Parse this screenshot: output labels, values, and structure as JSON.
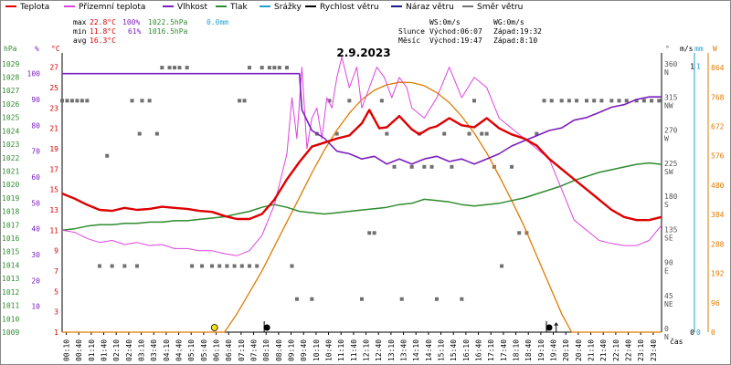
{
  "chart_data": {
    "type": "line",
    "title": "2.9.2023",
    "legend": [
      {
        "label": "Teplota",
        "color": "#dd0000"
      },
      {
        "label": "Přízemní teplota",
        "color": "#dd44dd"
      },
      {
        "label": "Vlhkost",
        "color": "#7a1fbf"
      },
      {
        "label": "Tlak",
        "color": "#2e8b2e"
      },
      {
        "label": "Srážky",
        "color": "#1fa0d0"
      },
      {
        "label": "Rychlost větru",
        "color": "#000000"
      },
      {
        "label": "Náraz větru",
        "color": "#1a1a8c"
      },
      {
        "label": "Směr větru",
        "color": "#707070"
      }
    ],
    "stats": {
      "max": {
        "label": "max",
        "temp": "22.8°C",
        "hum": "100%",
        "pres": "1022.5hPa",
        "rain": "0.0mm"
      },
      "min": {
        "label": "min",
        "temp": "11.8°C",
        "hum": "61%",
        "pres": "1016.5hPa"
      },
      "avg": {
        "label": "avg",
        "temp": "16.3°C"
      }
    },
    "info": {
      "ws": "WS:0m/s",
      "wg": "WG:0m/s",
      "sun_label": "Slunce",
      "sunrise": "Východ:06:07",
      "sunset": "Západ:19:32",
      "moon_label": "Měsíc",
      "moonrise": "Východ:19:47",
      "moonset": "Západ:8:10"
    },
    "axis_units": {
      "pressure": "hPa",
      "humidity": "%",
      "temperature": "°C",
      "direction": "°",
      "wind": "m/s",
      "rain": "mm",
      "solar": "W",
      "time": "čas"
    },
    "pressure_ticks": [
      1009,
      1010,
      1011,
      1012,
      1013,
      1014,
      1015,
      1016,
      1017,
      1018,
      1019,
      1020,
      1021,
      1022,
      1023,
      1024,
      1025,
      1026,
      1027,
      1028,
      1029
    ],
    "humidity_ticks": [
      10,
      20,
      30,
      40,
      50,
      60,
      70,
      80,
      90,
      100
    ],
    "temperature_ticks": [
      1,
      3,
      5,
      7,
      9,
      11,
      13,
      15,
      17,
      19,
      21,
      23,
      25,
      27
    ],
    "direction_ticks": [
      {
        "v": 0,
        "l": "0 N"
      },
      {
        "v": 45,
        "l": "45 NE"
      },
      {
        "v": 90,
        "l": "90 E"
      },
      {
        "v": 135,
        "l": "135 SE"
      },
      {
        "v": 180,
        "l": "180 S"
      },
      {
        "v": 225,
        "l": "225 SW"
      },
      {
        "v": 270,
        "l": "270 W"
      },
      {
        "v": 315,
        "l": "315 NW"
      },
      {
        "v": 360,
        "l": "360 N"
      }
    ],
    "wind_ticks": [
      {
        "v": 0,
        "l": "0"
      },
      {
        "v": 1,
        "l": "1"
      }
    ],
    "rain_ticks": [
      {
        "v": 0,
        "l": "0"
      },
      {
        "v": 1,
        "l": "1"
      }
    ],
    "solar_ticks": [
      0,
      96,
      192,
      288,
      384,
      480,
      576,
      672,
      768,
      864
    ],
    "x_ticks": [
      "00:10",
      "00:40",
      "01:10",
      "01:40",
      "02:10",
      "02:40",
      "03:10",
      "03:40",
      "04:10",
      "04:40",
      "05:10",
      "05:40",
      "06:10",
      "06:40",
      "07:10",
      "07:40",
      "08:10",
      "08:40",
      "09:10",
      "09:40",
      "10:10",
      "10:40",
      "11:10",
      "11:40",
      "12:10",
      "12:40",
      "13:10",
      "13:40",
      "14:10",
      "14:40",
      "15:10",
      "15:40",
      "16:10",
      "16:40",
      "17:10",
      "17:40",
      "18:10",
      "18:40",
      "19:10",
      "19:40",
      "20:10",
      "20:40",
      "21:10",
      "21:40",
      "22:10",
      "22:40",
      "23:10",
      "23:40"
    ],
    "xlim": [
      0,
      24
    ],
    "series": {
      "temperature": [
        [
          0,
          14.6
        ],
        [
          0.5,
          14.1
        ],
        [
          1,
          13.5
        ],
        [
          1.5,
          13.0
        ],
        [
          2,
          12.9
        ],
        [
          2.5,
          13.2
        ],
        [
          3,
          13.0
        ],
        [
          3.5,
          13.1
        ],
        [
          4,
          13.3
        ],
        [
          4.5,
          13.2
        ],
        [
          5,
          13.1
        ],
        [
          5.5,
          12.9
        ],
        [
          6,
          12.8
        ],
        [
          6.5,
          12.4
        ],
        [
          7,
          12.1
        ],
        [
          7.5,
          12.1
        ],
        [
          8,
          12.6
        ],
        [
          8.5,
          14.0
        ],
        [
          9,
          16.0
        ],
        [
          9.5,
          17.7
        ],
        [
          10,
          19.2
        ],
        [
          10.5,
          19.6
        ],
        [
          11,
          20.0
        ],
        [
          11.5,
          20.3
        ],
        [
          12,
          21.5
        ],
        [
          12.3,
          22.8
        ],
        [
          12.7,
          21.0
        ],
        [
          13,
          21.1
        ],
        [
          13.5,
          22.2
        ],
        [
          14,
          20.9
        ],
        [
          14.3,
          20.4
        ],
        [
          14.7,
          21.0
        ],
        [
          15,
          21.2
        ],
        [
          15.5,
          22.0
        ],
        [
          16,
          21.3
        ],
        [
          16.5,
          21.1
        ],
        [
          17,
          22.0
        ],
        [
          17.5,
          21.0
        ],
        [
          18,
          20.4
        ],
        [
          18.5,
          20.0
        ],
        [
          19,
          19.3
        ],
        [
          19.5,
          18.0
        ],
        [
          20,
          17.0
        ],
        [
          20.5,
          16.0
        ],
        [
          21,
          15.0
        ],
        [
          21.5,
          14.0
        ],
        [
          22,
          13.0
        ],
        [
          22.5,
          12.3
        ],
        [
          23,
          12.0
        ],
        [
          23.5,
          12.0
        ],
        [
          24,
          12.3
        ]
      ],
      "ground_temp": [
        [
          0,
          11.0
        ],
        [
          0.5,
          10.8
        ],
        [
          1,
          10.2
        ],
        [
          1.5,
          9.8
        ],
        [
          2,
          10.0
        ],
        [
          2.5,
          9.6
        ],
        [
          3,
          9.8
        ],
        [
          3.5,
          9.5
        ],
        [
          4,
          9.6
        ],
        [
          4.5,
          9.2
        ],
        [
          5,
          9.2
        ],
        [
          5.5,
          9.0
        ],
        [
          6,
          9.0
        ],
        [
          6.5,
          8.7
        ],
        [
          7,
          8.5
        ],
        [
          7.5,
          9.0
        ],
        [
          8,
          10.5
        ],
        [
          8.5,
          13.5
        ],
        [
          9,
          18.5
        ],
        [
          9.2,
          24
        ],
        [
          9.4,
          20
        ],
        [
          9.6,
          27
        ],
        [
          9.8,
          19
        ],
        [
          10,
          22
        ],
        [
          10.2,
          23
        ],
        [
          10.4,
          20
        ],
        [
          10.6,
          24
        ],
        [
          10.8,
          23
        ],
        [
          11,
          26
        ],
        [
          11.2,
          28
        ],
        [
          11.5,
          25
        ],
        [
          11.8,
          27
        ],
        [
          12,
          23
        ],
        [
          12.3,
          25
        ],
        [
          12.6,
          27
        ],
        [
          12.9,
          26
        ],
        [
          13.2,
          24
        ],
        [
          13.5,
          26
        ],
        [
          13.8,
          25
        ],
        [
          14,
          23
        ],
        [
          14.5,
          22
        ],
        [
          15,
          24
        ],
        [
          15.5,
          27
        ],
        [
          16,
          24
        ],
        [
          16.5,
          26
        ],
        [
          17,
          25
        ],
        [
          17.5,
          22
        ],
        [
          18,
          21
        ],
        [
          18.5,
          20
        ],
        [
          19,
          19
        ],
        [
          19.5,
          18
        ],
        [
          20,
          15
        ],
        [
          20.5,
          12
        ],
        [
          21,
          11
        ],
        [
          21.5,
          10
        ],
        [
          22,
          9.7
        ],
        [
          22.5,
          9.5
        ],
        [
          23,
          9.5
        ],
        [
          23.5,
          10.0
        ],
        [
          24,
          11.5
        ]
      ],
      "humidity": [
        [
          0,
          100
        ],
        [
          9.5,
          100
        ],
        [
          9.6,
          86
        ],
        [
          10,
          78
        ],
        [
          10.5,
          75
        ],
        [
          11,
          70
        ],
        [
          11.5,
          69
        ],
        [
          12,
          67
        ],
        [
          12.5,
          68
        ],
        [
          13,
          65
        ],
        [
          13.5,
          67
        ],
        [
          14,
          65
        ],
        [
          14.5,
          67
        ],
        [
          15,
          68
        ],
        [
          15.5,
          66
        ],
        [
          16,
          67
        ],
        [
          16.5,
          65
        ],
        [
          17,
          67
        ],
        [
          17.5,
          69
        ],
        [
          18,
          72
        ],
        [
          18.5,
          74
        ],
        [
          19,
          76
        ],
        [
          19.5,
          78
        ],
        [
          20,
          79
        ],
        [
          20.5,
          82
        ],
        [
          21,
          83
        ],
        [
          21.5,
          85
        ],
        [
          22,
          87
        ],
        [
          22.5,
          88
        ],
        [
          23,
          90
        ],
        [
          23.5,
          91
        ],
        [
          24,
          91
        ]
      ],
      "pressure": [
        [
          0,
          1016.6
        ],
        [
          0.5,
          1016.7
        ],
        [
          1,
          1016.9
        ],
        [
          1.5,
          1017.0
        ],
        [
          2,
          1017.0
        ],
        [
          2.5,
          1017.1
        ],
        [
          3,
          1017.1
        ],
        [
          3.5,
          1017.2
        ],
        [
          4,
          1017.2
        ],
        [
          4.5,
          1017.3
        ],
        [
          5,
          1017.3
        ],
        [
          5.5,
          1017.4
        ],
        [
          6,
          1017.5
        ],
        [
          6.5,
          1017.6
        ],
        [
          7,
          1017.8
        ],
        [
          7.5,
          1018.0
        ],
        [
          8,
          1018.3
        ],
        [
          8.5,
          1018.5
        ],
        [
          9,
          1018.3
        ],
        [
          9.5,
          1018.0
        ],
        [
          10,
          1017.9
        ],
        [
          10.5,
          1017.8
        ],
        [
          11,
          1017.9
        ],
        [
          11.5,
          1018.0
        ],
        [
          12,
          1018.1
        ],
        [
          12.5,
          1018.2
        ],
        [
          13,
          1018.3
        ],
        [
          13.5,
          1018.5
        ],
        [
          14,
          1018.6
        ],
        [
          14.5,
          1018.9
        ],
        [
          15,
          1018.8
        ],
        [
          15.5,
          1018.7
        ],
        [
          16,
          1018.5
        ],
        [
          16.5,
          1018.4
        ],
        [
          17,
          1018.5
        ],
        [
          17.5,
          1018.6
        ],
        [
          18,
          1018.8
        ],
        [
          18.5,
          1019.0
        ],
        [
          19,
          1019.3
        ],
        [
          19.5,
          1019.6
        ],
        [
          20,
          1019.9
        ],
        [
          20.5,
          1020.3
        ],
        [
          21,
          1020.6
        ],
        [
          21.5,
          1020.9
        ],
        [
          22,
          1021.1
        ],
        [
          22.5,
          1021.3
        ],
        [
          23,
          1021.5
        ],
        [
          23.5,
          1021.6
        ],
        [
          24,
          1021.5
        ]
      ],
      "wind_direction": [
        [
          0,
          315
        ],
        [
          0.2,
          315
        ],
        [
          0.4,
          315
        ],
        [
          0.6,
          315
        ],
        [
          0.8,
          315
        ],
        [
          1,
          315
        ],
        [
          1.5,
          90
        ],
        [
          2,
          90
        ],
        [
          2.5,
          90
        ],
        [
          3,
          90
        ],
        [
          1.8,
          240
        ],
        [
          2.8,
          315
        ],
        [
          3.2,
          315
        ],
        [
          3.5,
          315
        ],
        [
          3.8,
          270
        ],
        [
          3.1,
          270
        ],
        [
          4,
          360
        ],
        [
          4.3,
          360
        ],
        [
          4.5,
          360
        ],
        [
          4.7,
          360
        ],
        [
          5,
          360
        ],
        [
          5.2,
          90
        ],
        [
          5.6,
          90
        ],
        [
          6,
          90
        ],
        [
          6.3,
          90
        ],
        [
          6.6,
          90
        ],
        [
          6.9,
          90
        ],
        [
          7.2,
          90
        ],
        [
          7.5,
          90
        ],
        [
          7.8,
          90
        ],
        [
          7.1,
          315
        ],
        [
          7.3,
          315
        ],
        [
          7.5,
          360
        ],
        [
          8,
          360
        ],
        [
          8.3,
          360
        ],
        [
          8.5,
          360
        ],
        [
          8.7,
          360
        ],
        [
          9,
          360
        ],
        [
          9.2,
          90
        ],
        [
          9.4,
          45
        ],
        [
          10,
          45
        ],
        [
          10.2,
          270
        ],
        [
          10.7,
          315
        ],
        [
          11,
          270
        ],
        [
          11.5,
          315
        ],
        [
          12,
          45
        ],
        [
          12.3,
          135
        ],
        [
          12.5,
          135
        ],
        [
          12.8,
          315
        ],
        [
          13,
          270
        ],
        [
          13.3,
          225
        ],
        [
          13.6,
          45
        ],
        [
          14,
          225
        ],
        [
          14.3,
          270
        ],
        [
          14.5,
          225
        ],
        [
          14.8,
          225
        ],
        [
          15,
          45
        ],
        [
          15.3,
          270
        ],
        [
          15.6,
          225
        ],
        [
          16,
          45
        ],
        [
          16.3,
          270
        ],
        [
          16.5,
          315
        ],
        [
          16.8,
          270
        ],
        [
          17,
          270
        ],
        [
          17.3,
          225
        ],
        [
          17.6,
          90
        ],
        [
          18,
          225
        ],
        [
          18.3,
          135
        ],
        [
          18.6,
          135
        ],
        [
          19,
          270
        ],
        [
          19.3,
          315
        ],
        [
          19.6,
          315
        ],
        [
          20,
          315
        ],
        [
          20.3,
          315
        ],
        [
          20.6,
          315
        ],
        [
          21,
          315
        ],
        [
          21.3,
          315
        ],
        [
          21.6,
          315
        ],
        [
          22,
          315
        ],
        [
          22.3,
          315
        ],
        [
          22.6,
          315
        ],
        [
          23,
          315
        ],
        [
          23.3,
          315
        ],
        [
          23.6,
          315
        ],
        [
          23.9,
          315
        ]
      ],
      "solar": [
        [
          0,
          0
        ],
        [
          6.0,
          0
        ],
        [
          6.5,
          0
        ],
        [
          7,
          60
        ],
        [
          7.5,
          130
        ],
        [
          8,
          200
        ],
        [
          8.5,
          280
        ],
        [
          9,
          360
        ],
        [
          9.5,
          440
        ],
        [
          10,
          520
        ],
        [
          10.5,
          595
        ],
        [
          11,
          660
        ],
        [
          11.5,
          715
        ],
        [
          12,
          760
        ],
        [
          12.5,
          790
        ],
        [
          13,
          808
        ],
        [
          13.5,
          816
        ],
        [
          14,
          815
        ],
        [
          14.5,
          805
        ],
        [
          15,
          782
        ],
        [
          15.5,
          750
        ],
        [
          16,
          705
        ],
        [
          16.5,
          650
        ],
        [
          17,
          585
        ],
        [
          17.5,
          510
        ],
        [
          18,
          430
        ],
        [
          18.5,
          345
        ],
        [
          19,
          250
        ],
        [
          19.5,
          155
        ],
        [
          20,
          60
        ],
        [
          20.4,
          0
        ],
        [
          24,
          0
        ]
      ]
    },
    "markers": [
      {
        "t": 6.1,
        "type": "sun",
        "color": "#f0e020"
      },
      {
        "t": 8.2,
        "type": "moon",
        "color": "#000000"
      },
      {
        "t": 19.5,
        "type": "moon",
        "color": "#000000"
      },
      {
        "t": 19.78,
        "type": "moonset",
        "color": "#000000"
      }
    ]
  }
}
